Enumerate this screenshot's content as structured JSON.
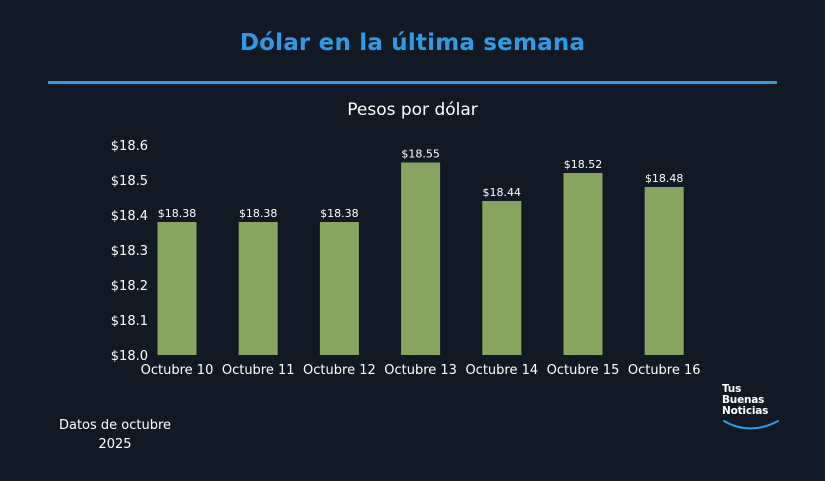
{
  "header": {
    "title": "Dólar en la última semana",
    "accent_color": "#2e9be6"
  },
  "chart_data": {
    "type": "bar",
    "title": "Pesos por dólar",
    "categories": [
      "Octubre 10",
      "Octubre 11",
      "Octubre 12",
      "Octubre 13",
      "Octubre 14",
      "Octubre 15",
      "Octubre 16"
    ],
    "values": [
      18.38,
      18.38,
      18.38,
      18.55,
      18.44,
      18.52,
      18.48
    ],
    "data_labels": [
      "$18.38",
      "$18.38",
      "$18.38",
      "$18.55",
      "$18.44",
      "$18.52",
      "$18.48"
    ],
    "yticks": [
      18.0,
      18.1,
      18.2,
      18.3,
      18.4,
      18.5,
      18.6
    ],
    "ytick_labels": [
      "$18.0",
      "$18.1",
      "$18.2",
      "$18.3",
      "$18.4",
      "$18.5",
      "$18.6"
    ],
    "ylim": [
      18.0,
      18.6
    ],
    "xlabel": "",
    "ylabel": "",
    "grid": false,
    "bar_color": "#87a560"
  },
  "footer": {
    "note": "Datos de octubre 2025",
    "logo_lines": [
      "Tus",
      "Buenas",
      "Noticias"
    ]
  }
}
